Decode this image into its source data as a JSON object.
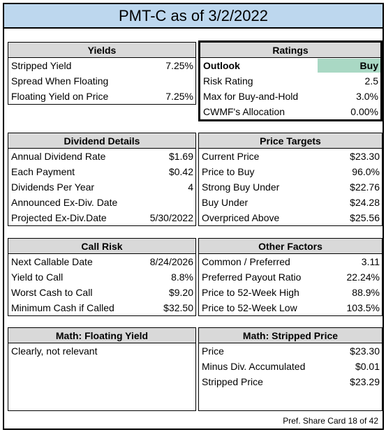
{
  "title": "PMT-C as of 3/2/2022",
  "yields": {
    "header": "Yields",
    "rows": [
      {
        "label": "Stripped Yield",
        "value": "7.25%"
      },
      {
        "label": "Spread When Floating",
        "value": ""
      },
      {
        "label": "Floating Yield on Price",
        "value": "7.25%"
      }
    ]
  },
  "ratings": {
    "header": "Ratings",
    "rows": [
      {
        "label": "Outlook",
        "value": "Buy"
      },
      {
        "label": "Risk Rating",
        "value": "2.5"
      },
      {
        "label": "Max for Buy-and-Hold",
        "value": "3.0%"
      },
      {
        "label": "CWMF's Allocation",
        "value": "0.00%"
      }
    ],
    "outlook_color": "#a9d8c4"
  },
  "dividend": {
    "header": "Dividend Details",
    "rows": [
      {
        "label": "Annual Dividend Rate",
        "value": "$1.69"
      },
      {
        "label": "Each Payment",
        "value": "$0.42"
      },
      {
        "label": "Dividends Per Year",
        "value": "4"
      },
      {
        "label": "Announced Ex-Div. Date",
        "value": ""
      },
      {
        "label": "Projected Ex-Div.Date",
        "value": "5/30/2022"
      }
    ]
  },
  "price_targets": {
    "header": "Price Targets",
    "rows": [
      {
        "label": "Current Price",
        "value": "$23.30"
      },
      {
        "label": "Price to Buy",
        "value": "96.0%"
      },
      {
        "label": "Strong Buy Under",
        "value": "$22.76"
      },
      {
        "label": "Buy Under",
        "value": "$24.28"
      },
      {
        "label": "Overpriced Above",
        "value": "$25.56"
      }
    ]
  },
  "call_risk": {
    "header": "Call Risk",
    "rows": [
      {
        "label": "Next Callable Date",
        "value": "8/24/2026"
      },
      {
        "label": "Yield to Call",
        "value": "8.8%"
      },
      {
        "label": "Worst Cash to Call",
        "value": "$9.20"
      },
      {
        "label": "Minimum Cash if Called",
        "value": "$32.50"
      }
    ]
  },
  "other_factors": {
    "header": "Other Factors",
    "rows": [
      {
        "label": "Common / Preferred",
        "value": "3.11"
      },
      {
        "label": "Preferred Payout Ratio",
        "value": "22.24%"
      },
      {
        "label": "Price to 52-Week High",
        "value": "88.9%"
      },
      {
        "label": "Price to 52-Week Low",
        "value": "103.5%"
      }
    ]
  },
  "math_floating": {
    "header": "Math: Floating Yield",
    "text": "Clearly, not relevant"
  },
  "math_stripped": {
    "header": "Math: Stripped Price",
    "rows": [
      {
        "label": "Price",
        "value": "$23.30"
      },
      {
        "label": "Minus Div. Accumulated",
        "value": "$0.01"
      },
      {
        "label": "Stripped Price",
        "value": "$23.29"
      }
    ]
  },
  "footer": "Pref. Share Card 18 of 42",
  "colors": {
    "title_bg": "#bdd7ee",
    "header_bg": "#d9d9d9"
  }
}
